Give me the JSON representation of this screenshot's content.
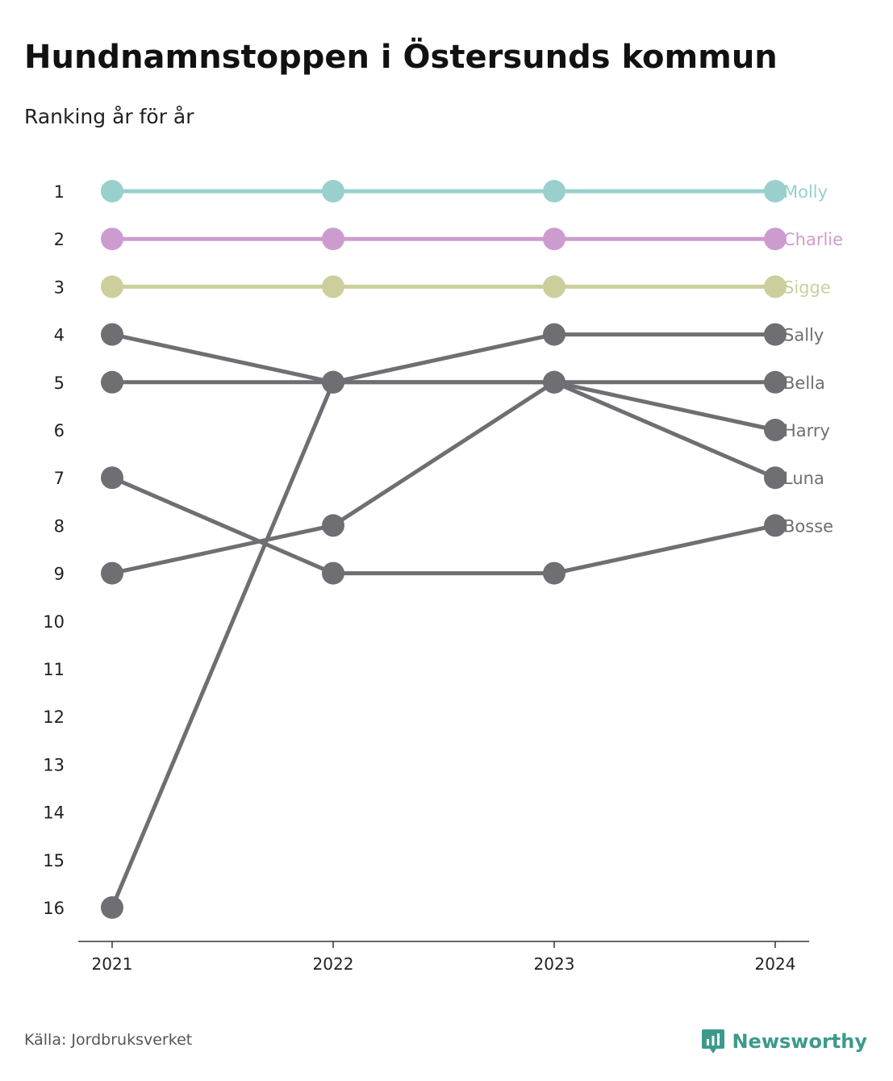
{
  "title": "Hundnamnstoppen i Östersunds kommun",
  "subtitle": "Ranking år för år",
  "source": "Källa: Jordbruksverket",
  "brand": "Newsworthy",
  "chart_data": {
    "type": "line",
    "x": [
      "2021",
      "2022",
      "2023",
      "2024"
    ],
    "y_ticks": [
      1,
      2,
      3,
      4,
      5,
      6,
      7,
      8,
      9,
      10,
      11,
      12,
      13,
      14,
      15,
      16
    ],
    "ylim": [
      1,
      16
    ],
    "y_reversed": true,
    "grid": false,
    "legend": "end-labels",
    "series": [
      {
        "name": "Molly",
        "values": [
          1,
          1,
          1,
          1
        ],
        "color": "#99cfcc"
      },
      {
        "name": "Charlie",
        "values": [
          2,
          2,
          2,
          2
        ],
        "color": "#cd9ccf"
      },
      {
        "name": "Sigge",
        "values": [
          3,
          3,
          3,
          3
        ],
        "color": "#cccf9c"
      },
      {
        "name": "Sally",
        "values": [
          16,
          5,
          4,
          4
        ],
        "color": "#6e6e73"
      },
      {
        "name": "Bella",
        "values": [
          5,
          5,
          5,
          5
        ],
        "color": "#6e6e73"
      },
      {
        "name": "Harry",
        "values": [
          9,
          8,
          5,
          6
        ],
        "color": "#6e6e73"
      },
      {
        "name": "Luna",
        "values": [
          4,
          5,
          5,
          7
        ],
        "color": "#6e6e73"
      },
      {
        "name": "Bosse",
        "values": [
          7,
          9,
          9,
          8
        ],
        "color": "#6e6e73"
      }
    ]
  }
}
